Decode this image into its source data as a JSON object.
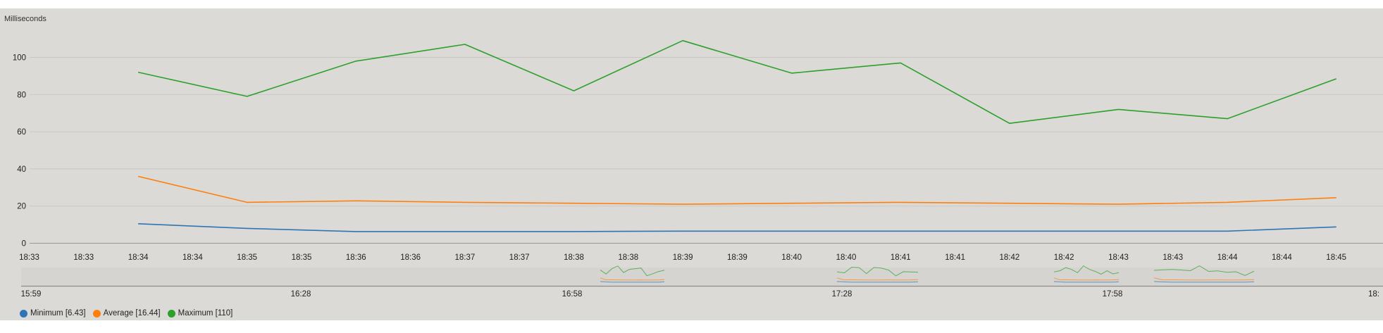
{
  "chart_data": {
    "type": "line",
    "ylabel": "Milliseconds",
    "ylim": [
      0,
      110
    ],
    "yticks": [
      0,
      20,
      40,
      60,
      80,
      100
    ],
    "x_tick_labels": [
      "18:33",
      "18:33",
      "18:34",
      "18:34",
      "18:35",
      "18:35",
      "18:36",
      "18:36",
      "18:37",
      "18:37",
      "18:38",
      "18:38",
      "18:39",
      "18:39",
      "18:40",
      "18:40",
      "18:41",
      "18:41",
      "18:42",
      "18:42",
      "18:43",
      "18:43",
      "18:44",
      "18:44",
      "18:45",
      "18:"
    ],
    "x": [
      "18:34",
      "18:35",
      "18:36",
      "18:37",
      "18:38",
      "18:39",
      "18:40",
      "18:41",
      "18:42",
      "18:43",
      "18:44",
      "18:45"
    ],
    "series": [
      {
        "name": "Minimum",
        "color": "#2e75b6",
        "values": [
          10.5,
          8.0,
          6.3,
          6.3,
          6.3,
          6.5,
          6.5,
          6.5,
          6.5,
          6.5,
          6.5,
          8.8
        ]
      },
      {
        "name": "Average",
        "color": "#ff7f0e",
        "values": [
          36,
          22,
          22.8,
          22,
          21.5,
          21,
          21.5,
          22,
          21.5,
          21,
          22,
          24.5
        ]
      },
      {
        "name": "Maximum",
        "color": "#2ca02c",
        "values": [
          92,
          79,
          98,
          107,
          82,
          109,
          91.5,
          97,
          64.5,
          72,
          67,
          88.5
        ]
      }
    ],
    "navigator": {
      "tick_labels": [
        "15:59",
        "16:28",
        "16:58",
        "17:28",
        "17:58",
        "18:"
      ]
    },
    "legend": {
      "placement": "bottom-left",
      "items": [
        {
          "label": "Minimum [6.43]",
          "color": "#2e75b6"
        },
        {
          "label": "Average [16.44]",
          "color": "#ff7f0e"
        },
        {
          "label": "Maximum [110]",
          "color": "#2ca02c"
        }
      ]
    }
  }
}
